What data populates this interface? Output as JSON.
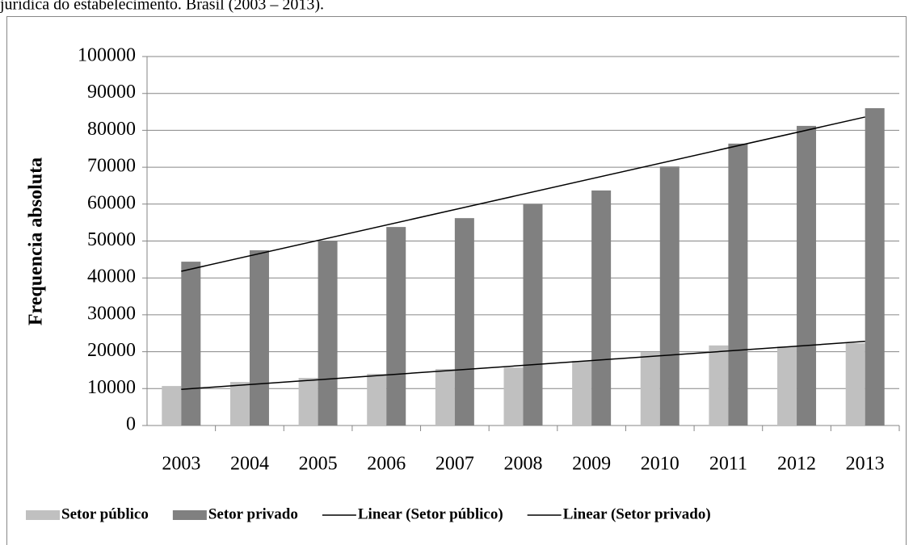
{
  "chart_data": {
    "type": "bar",
    "caption": "jurídica do estabelecimento. Brasil (2003 – 2013).",
    "y_label": "Frequencia absoluta",
    "categories": [
      "2003",
      "2004",
      "2005",
      "2006",
      "2007",
      "2008",
      "2009",
      "2010",
      "2011",
      "2012",
      "2013"
    ],
    "series": [
      {
        "name": "Setor público",
        "color": "#c0c0c0",
        "values": [
          10700,
          11800,
          12900,
          14000,
          15300,
          15700,
          17500,
          19900,
          21700,
          21400,
          22300
        ]
      },
      {
        "name": "Setor privado",
        "color": "#808080",
        "values": [
          44400,
          47500,
          50100,
          53800,
          56200,
          60000,
          63700,
          70200,
          76400,
          81200,
          86000
        ]
      }
    ],
    "trendlines": [
      {
        "name": "Linear (Setor público)",
        "color": "#000000",
        "values": [
          9800,
          22800
        ]
      },
      {
        "name": "Linear (Setor privado)",
        "color": "#000000",
        "values": [
          41800,
          83600
        ]
      }
    ],
    "ylim": [
      0,
      100000
    ],
    "yticks": [
      0,
      10000,
      20000,
      30000,
      40000,
      50000,
      60000,
      70000,
      80000,
      90000,
      100000
    ],
    "grid": true,
    "legend": "bottom"
  }
}
